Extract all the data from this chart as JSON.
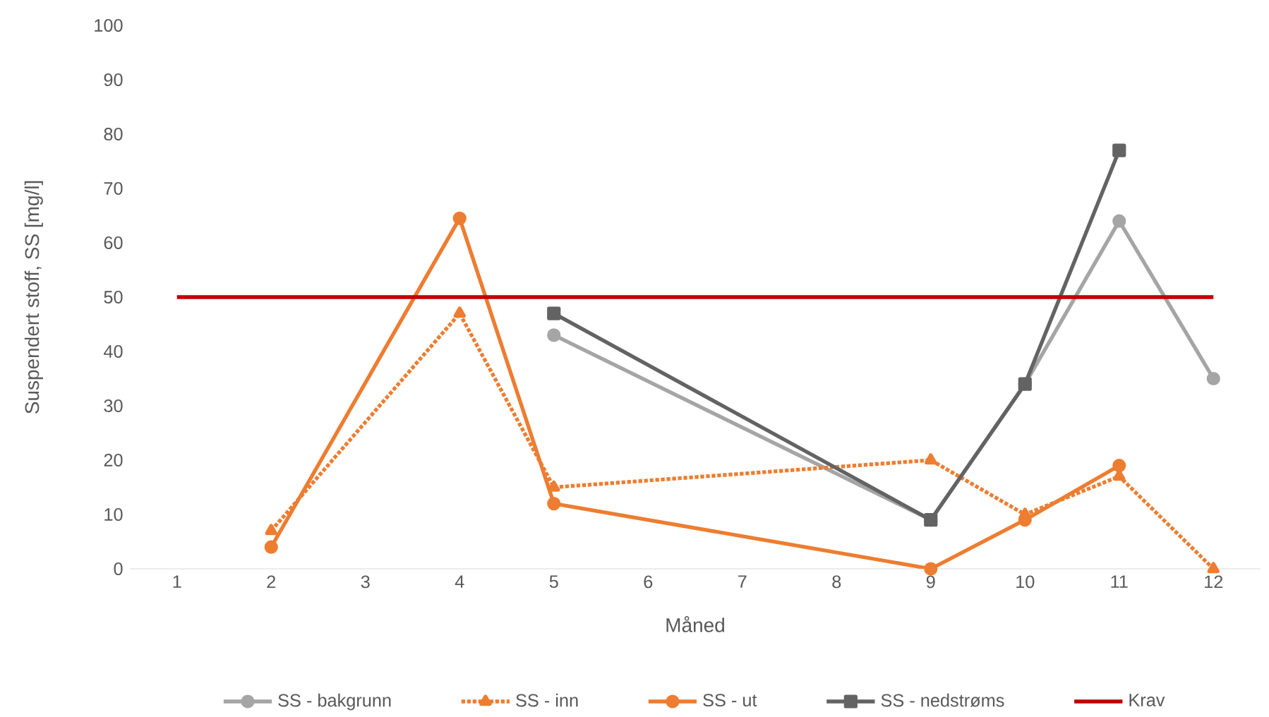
{
  "chart_data": {
    "type": "line",
    "xlabel": "Måned",
    "ylabel": "Suspendert stoff, SS [mg/l]",
    "categories": [
      "1",
      "2",
      "3",
      "4",
      "5",
      "6",
      "7",
      "8",
      "9",
      "10",
      "11",
      "12"
    ],
    "ylim": [
      0,
      100
    ],
    "yticks": [
      0,
      10,
      20,
      30,
      40,
      50,
      60,
      70,
      80,
      90,
      100
    ],
    "legend": "bottom",
    "grid": false,
    "series": [
      {
        "name": "SS - bakgrunn",
        "color": "#a5a5a5",
        "marker": "circle",
        "line_style": "solid",
        "values": [
          null,
          null,
          null,
          null,
          43,
          null,
          null,
          null,
          9,
          34,
          64,
          35
        ]
      },
      {
        "name": "SS - inn",
        "color": "#ed7d31",
        "marker": "triangle",
        "line_style": "dotted",
        "values": [
          null,
          7,
          null,
          47,
          15,
          null,
          null,
          null,
          20,
          10,
          17,
          0
        ]
      },
      {
        "name": "SS - ut",
        "color": "#ed7d31",
        "marker": "circle",
        "line_style": "solid",
        "values": [
          null,
          4,
          null,
          64.5,
          12,
          null,
          null,
          null,
          0,
          9,
          19,
          null
        ]
      },
      {
        "name": "SS - nedstrøms",
        "color": "#636363",
        "marker": "square",
        "line_style": "solid",
        "values": [
          null,
          null,
          null,
          null,
          47,
          null,
          null,
          null,
          9,
          34,
          77,
          null
        ]
      },
      {
        "name": "Krav",
        "color": "#c00000",
        "marker": "none",
        "line_style": "solid",
        "values": [
          50,
          50,
          50,
          50,
          50,
          50,
          50,
          50,
          50,
          50,
          50,
          50
        ]
      }
    ]
  }
}
